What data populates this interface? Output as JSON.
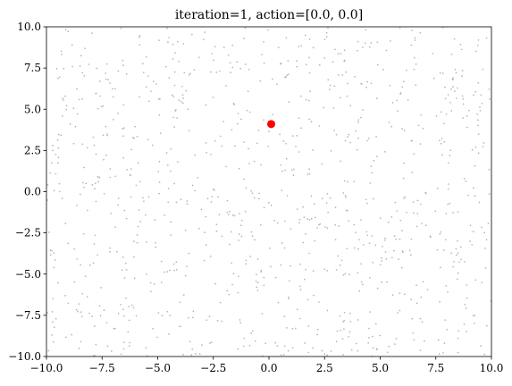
{
  "chart_data": {
    "type": "scatter",
    "title": "iteration=1, action=[0.0, 0.0]",
    "xlabel": "",
    "ylabel": "",
    "xlim": [
      -10,
      10
    ],
    "ylim": [
      -10,
      10
    ],
    "grid": false,
    "x_ticks": [
      -10,
      -7.5,
      -5,
      -2.5,
      0,
      2.5,
      5,
      7.5,
      10
    ],
    "y_ticks": [
      -10,
      -7.5,
      -5,
      -2.5,
      0,
      2.5,
      5,
      7.5,
      10
    ],
    "x_tick_labels": [
      "−10.0",
      "−7.5",
      "−5.0",
      "−2.5",
      "0.0",
      "2.5",
      "5.0",
      "7.5",
      "10.0"
    ],
    "y_tick_labels": [
      "−10.0",
      "−7.5",
      "−5.0",
      "−2.5",
      "0.0",
      "2.5",
      "5.0",
      "7.5",
      "10.0"
    ],
    "series": [
      {
        "role": "background-points",
        "color": "#b3b3b3",
        "count": 1000,
        "distribution": "uniform over [-10, 10] x [-10, 10]"
      },
      {
        "role": "agent",
        "color": "#ff0000",
        "points": [
          {
            "x": 0.1,
            "y": 4.1
          }
        ]
      }
    ]
  }
}
